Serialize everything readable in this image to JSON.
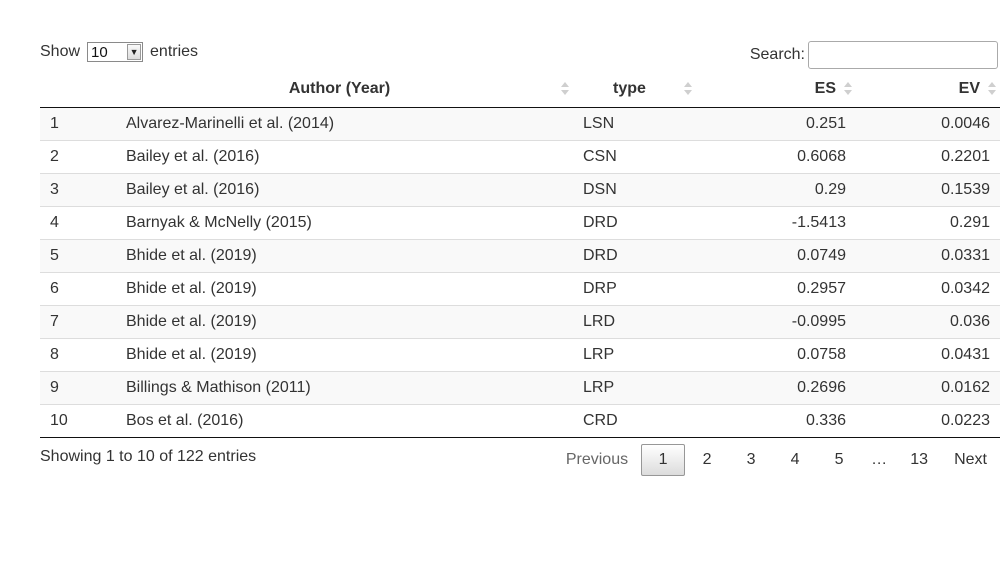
{
  "length": {
    "show_label": "Show",
    "value": "10",
    "entries_label": "entries"
  },
  "search": {
    "label": "Search:",
    "value": "",
    "placeholder": ""
  },
  "table": {
    "headers": {
      "index": "",
      "author": "Author (Year)",
      "type": "type",
      "es": "ES",
      "ev": "EV"
    },
    "rows": [
      {
        "index": "1",
        "author": "Alvarez-Marinelli et al. (2014)",
        "type": "LSN",
        "es": "0.251",
        "ev": "0.0046"
      },
      {
        "index": "2",
        "author": "Bailey et al. (2016)",
        "type": "CSN",
        "es": "0.6068",
        "ev": "0.2201"
      },
      {
        "index": "3",
        "author": "Bailey et al. (2016)",
        "type": "DSN",
        "es": "0.29",
        "ev": "0.1539"
      },
      {
        "index": "4",
        "author": "Barnyak & McNelly (2015)",
        "type": "DRD",
        "es": "-1.5413",
        "ev": "0.291"
      },
      {
        "index": "5",
        "author": "Bhide et al. (2019)",
        "type": "DRD",
        "es": "0.0749",
        "ev": "0.0331"
      },
      {
        "index": "6",
        "author": "Bhide et al. (2019)",
        "type": "DRP",
        "es": "0.2957",
        "ev": "0.0342"
      },
      {
        "index": "7",
        "author": "Bhide et al. (2019)",
        "type": "LRD",
        "es": "-0.0995",
        "ev": "0.036"
      },
      {
        "index": "8",
        "author": "Bhide et al. (2019)",
        "type": "LRP",
        "es": "0.0758",
        "ev": "0.0431"
      },
      {
        "index": "9",
        "author": "Billings & Mathison (2011)",
        "type": "LRP",
        "es": "0.2696",
        "ev": "0.0162"
      },
      {
        "index": "10",
        "author": "Bos et al. (2016)",
        "type": "CRD",
        "es": "0.336",
        "ev": "0.0223"
      }
    ]
  },
  "info": "Showing 1 to 10 of 122 entries",
  "pagination": {
    "previous": "Previous",
    "next": "Next",
    "pages": [
      "1",
      "2",
      "3",
      "4",
      "5"
    ],
    "ellipsis": "…",
    "last": "13",
    "current": "1"
  },
  "icons": {
    "sort": "sort-both-icon",
    "select_arrow": "dropdown-arrow-icon"
  }
}
